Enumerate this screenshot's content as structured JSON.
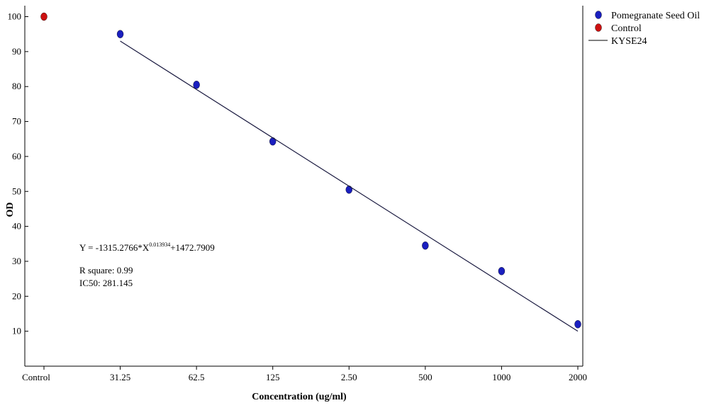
{
  "chart_data": {
    "type": "scatter",
    "title": "",
    "xlabel": "Concentration (ug/ml)",
    "ylabel": "OD",
    "categories": [
      "Control",
      "31.25",
      "62.5",
      "125",
      "2.50",
      "500",
      "1000",
      "2000"
    ],
    "ylim": [
      0,
      102
    ],
    "yticks": [
      10,
      20,
      30,
      40,
      50,
      60,
      70,
      80,
      90,
      100
    ],
    "series": [
      {
        "name": "Pomegranate Seed Oil",
        "kind": "points",
        "color": "#1a1fbf",
        "points": [
          {
            "x": "31.25",
            "y": 95
          },
          {
            "x": "62.5",
            "y": 80.5
          },
          {
            "x": "125",
            "y": 64.3
          },
          {
            "x": "2.50",
            "y": 50.5
          },
          {
            "x": "500",
            "y": 34.5
          },
          {
            "x": "1000",
            "y": 27.2
          },
          {
            "x": "2000",
            "y": 12
          }
        ]
      },
      {
        "name": "Control",
        "kind": "points",
        "color": "#cc1111",
        "points": [
          {
            "x": "Control",
            "y": 100
          }
        ]
      },
      {
        "name": "KYSE24",
        "kind": "line",
        "color": "#1a1a40",
        "points": [
          {
            "x": "31.25",
            "y": 93
          },
          {
            "x": "2000",
            "y": 10
          }
        ]
      }
    ],
    "annotations": {
      "equation_prefix": "Y = -1315.2766*X",
      "equation_exponent": "0.013934",
      "equation_suffix": "+1472.7909",
      "r_square": "R square: 0.99",
      "ic50": "IC50: 281.145"
    },
    "grid": false,
    "legend_position": "top-right"
  }
}
